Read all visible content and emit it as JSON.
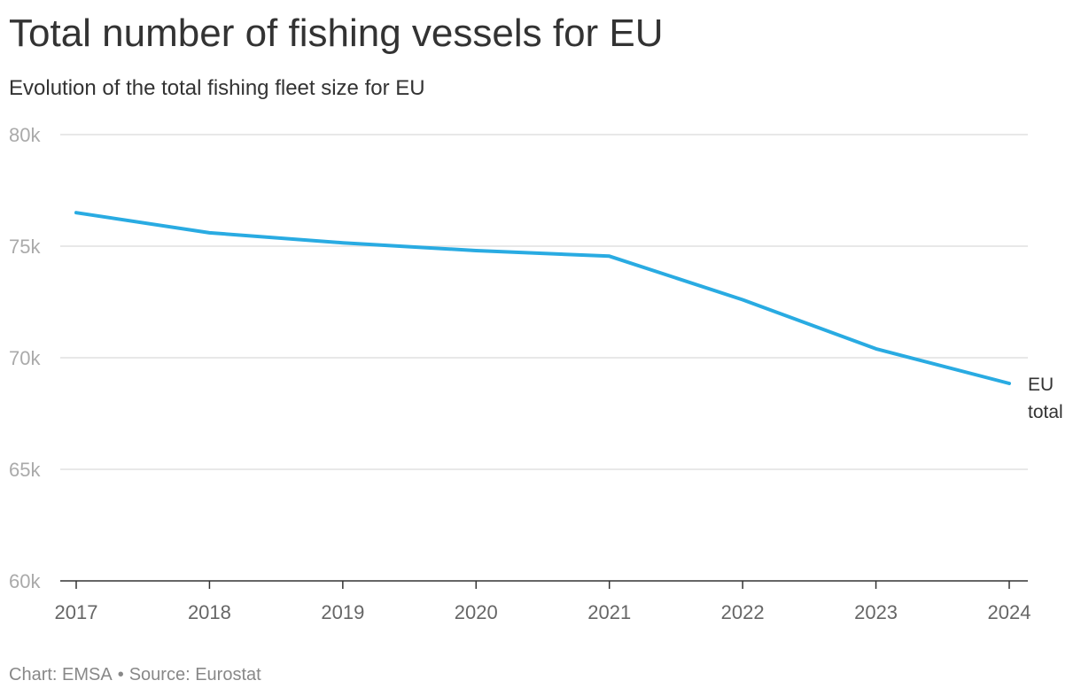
{
  "title": "Total number of fishing vessels for EU",
  "subtitle": "Evolution of the total fishing fleet size for EU",
  "footer": {
    "chart_credit": "Chart: EMSA",
    "separator": "•",
    "source": "Source: Eurostat"
  },
  "colors": {
    "line": "#29abe2",
    "grid": "#e1e1e1",
    "axis": "#333333"
  },
  "chart_data": {
    "type": "line",
    "title": "Total number of fishing vessels for EU",
    "subtitle": "Evolution of the total fishing fleet size for EU",
    "xlabel": "",
    "ylabel": "",
    "categories": [
      "2017",
      "2018",
      "2019",
      "2020",
      "2021",
      "2022",
      "2023",
      "2024"
    ],
    "series": [
      {
        "name": "EU total",
        "label_lines": [
          "EU",
          "total"
        ],
        "values": [
          76500,
          75600,
          75150,
          74800,
          74550,
          72600,
          70400,
          68850
        ]
      }
    ],
    "ylim": [
      60000,
      80000
    ],
    "yticks": [
      60000,
      65000,
      70000,
      75000,
      80000
    ],
    "ytick_labels": [
      "60k",
      "65k",
      "70k",
      "75k",
      "80k"
    ],
    "grid": true,
    "legend": "end-of-line label"
  }
}
